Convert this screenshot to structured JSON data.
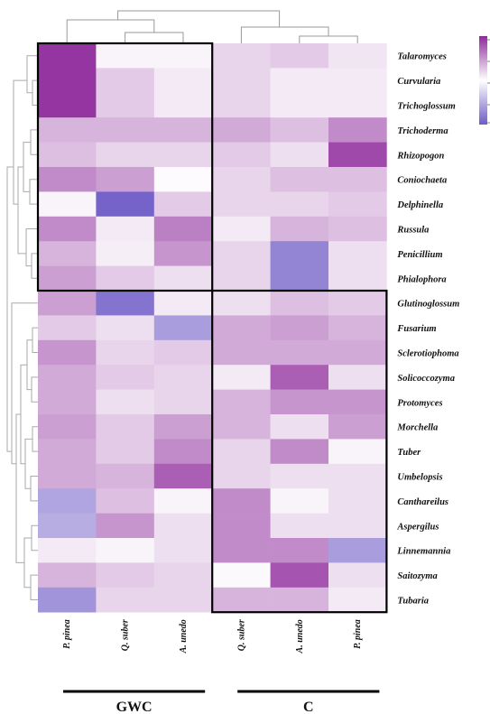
{
  "chart_data": {
    "type": "heatmap",
    "color_scale": {
      "low": "#ffffff",
      "high": "#8e2a9c",
      "alt_high": "#6f5bc6"
    },
    "columns": [
      "P. pinea",
      "Q. suber",
      "A. unedo",
      "Q. suber",
      "A. unedo",
      "P. pinea"
    ],
    "groups": [
      {
        "label": "GWC",
        "columns": [
          0,
          1,
          2
        ]
      },
      {
        "label": "C",
        "columns": [
          3,
          4,
          5
        ]
      }
    ],
    "rows": [
      "Talaromyces",
      "Curvularia",
      "Trichoglossum",
      "Trichoderma",
      "Rhizopogon",
      "Coniochaeta",
      "Delphinella",
      "Russula",
      "Penicillium",
      "Phialophora",
      "Glutinoglossum",
      "Fusarium",
      "Sclerotiophoma",
      "Solicoccozyma",
      "Protomyces",
      "Morchella",
      "Tuber",
      "Umbelopsis",
      "Canthareilus",
      "Aspergilus",
      "Linnemannia",
      "Saitozyma",
      "Tubaria"
    ],
    "values": [
      [
        0.95,
        0.05,
        0.05,
        0.2,
        0.25,
        0.12
      ],
      [
        0.95,
        0.25,
        0.1,
        0.2,
        0.1,
        0.1
      ],
      [
        0.95,
        0.25,
        0.1,
        0.2,
        0.1,
        0.1
      ],
      [
        0.35,
        0.35,
        0.35,
        0.4,
        0.3,
        0.55
      ],
      [
        0.3,
        0.2,
        0.2,
        0.25,
        0.15,
        0.85
      ],
      [
        0.55,
        0.45,
        0.02,
        0.2,
        0.3,
        0.3
      ],
      [
        0.05,
        0.95,
        0.25,
        0.2,
        0.2,
        0.25
      ],
      [
        0.55,
        0.1,
        0.6,
        0.1,
        0.35,
        0.3
      ],
      [
        0.35,
        0.08,
        0.5,
        0.2,
        0.75,
        0.15
      ],
      [
        0.45,
        0.25,
        0.15,
        0.2,
        0.75,
        0.15
      ],
      [
        0.45,
        0.85,
        0.1,
        0.15,
        0.3,
        0.25
      ],
      [
        0.25,
        0.15,
        0.6,
        0.4,
        0.45,
        0.35
      ],
      [
        0.5,
        0.2,
        0.25,
        0.4,
        0.4,
        0.4
      ],
      [
        0.4,
        0.25,
        0.2,
        0.1,
        0.75,
        0.15
      ],
      [
        0.4,
        0.15,
        0.2,
        0.35,
        0.5,
        0.5
      ],
      [
        0.45,
        0.25,
        0.45,
        0.35,
        0.15,
        0.45
      ],
      [
        0.4,
        0.25,
        0.55,
        0.2,
        0.55,
        0.05
      ],
      [
        0.4,
        0.35,
        0.75,
        0.2,
        0.15,
        0.15
      ],
      [
        0.55,
        0.3,
        0.05,
        0.55,
        0.05,
        0.15
      ],
      [
        0.5,
        0.5,
        0.15,
        0.55,
        0.15,
        0.15
      ],
      [
        0.1,
        0.05,
        0.15,
        0.55,
        0.55,
        0.6
      ],
      [
        0.35,
        0.25,
        0.2,
        0.03,
        0.8,
        0.15
      ],
      [
        0.65,
        0.2,
        0.2,
        0.35,
        0.35,
        0.1
      ]
    ],
    "blue_cells": [
      [
        6,
        1
      ],
      [
        10,
        1
      ],
      [
        8,
        4
      ],
      [
        9,
        4
      ],
      [
        20,
        5
      ],
      [
        22,
        0
      ],
      [
        11,
        2
      ],
      [
        18,
        0
      ],
      [
        19,
        0
      ]
    ],
    "highlight_boxes": [
      {
        "rows": [
          0,
          9
        ],
        "columns": [
          0,
          2
        ]
      },
      {
        "rows": [
          10,
          22
        ],
        "columns": [
          3,
          5
        ]
      }
    ],
    "legend": {
      "type": "colorbar",
      "placement": "top-right"
    },
    "dendrograms": {
      "rows": "left",
      "columns": "top"
    }
  }
}
